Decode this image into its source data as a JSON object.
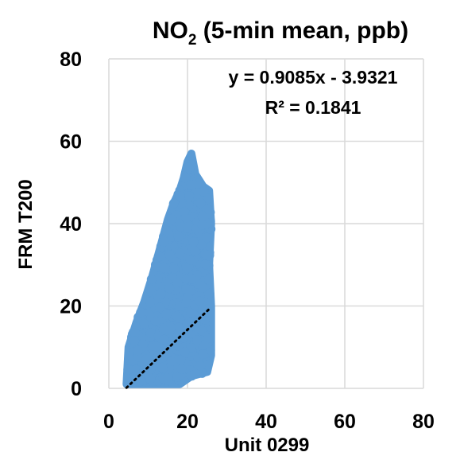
{
  "chart_data": {
    "type": "scatter",
    "title": {
      "main": "NO",
      "sub": "2",
      "rest": " (5-min mean, ppb)"
    },
    "xlabel": "Unit 0299",
    "ylabel": "FRM T200",
    "xlim": [
      0,
      80
    ],
    "ylim": [
      0,
      80
    ],
    "xticks": [
      "0",
      "20",
      "40",
      "60",
      "80"
    ],
    "yticks": [
      "0",
      "20",
      "40",
      "60",
      "80"
    ],
    "grid": true,
    "point_color": "#5b9bd5",
    "trendline": {
      "slope": 0.9085,
      "intercept": -3.9321,
      "x_range": [
        4.5,
        25.5
      ],
      "style": "dotted"
    },
    "annotations": {
      "equation": "y = 0.9085x - 3.9321",
      "r_squared": "R² = 0.1841"
    },
    "cloud_envelope": [
      [
        4.5,
        1
      ],
      [
        5,
        10
      ],
      [
        6,
        13
      ],
      [
        7,
        16
      ],
      [
        9,
        21
      ],
      [
        11,
        27
      ],
      [
        13,
        34
      ],
      [
        15,
        41
      ],
      [
        16.5,
        45
      ],
      [
        18,
        48
      ],
      [
        19,
        51
      ],
      [
        20,
        55
      ],
      [
        21,
        57
      ],
      [
        22,
        52
      ],
      [
        24,
        49
      ],
      [
        25.5,
        48
      ],
      [
        26,
        40
      ],
      [
        25.5,
        30
      ],
      [
        26,
        20
      ],
      [
        26,
        8
      ],
      [
        25,
        4
      ],
      [
        21,
        3
      ],
      [
        18,
        1
      ],
      [
        15,
        1
      ],
      [
        10,
        1
      ],
      [
        6,
        1
      ],
      [
        4.5,
        1
      ]
    ]
  }
}
